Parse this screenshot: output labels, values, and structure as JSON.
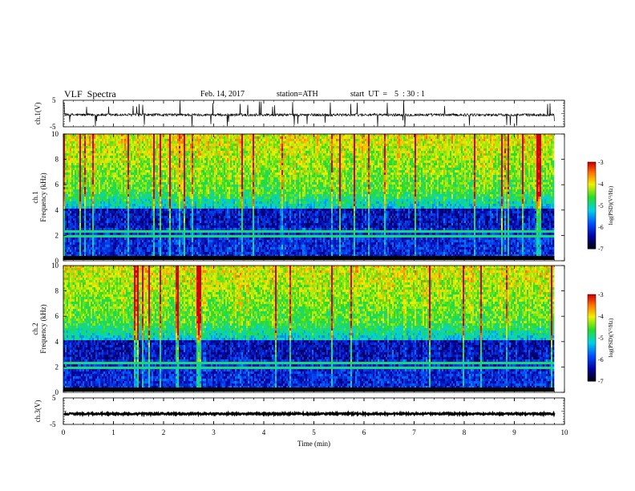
{
  "header": {
    "title": "VLF  Spectra",
    "date": "Feb. 14, 2017",
    "station": "station=ATH",
    "start_label": "start  UT  =",
    "start_time": "5  : 30 : 1"
  },
  "chart_data": [
    {
      "type": "line",
      "panel": "ch1-waveform",
      "ylabel": "ch.1(V)",
      "ylim": [
        -5,
        5
      ],
      "yticks": [
        "5",
        "-5"
      ],
      "xlim": [
        0,
        10
      ],
      "x_extent_min": [
        0,
        9.8
      ],
      "baseline_v": -0.5,
      "noise_amplitude_v": 1.0,
      "spike_max_v": 5
    },
    {
      "type": "heatmap",
      "panel": "ch1-spectrogram",
      "ylabel_top": "ch.1",
      "ylabel": "Frequency  (kHz)",
      "ylim": [
        0,
        10
      ],
      "yticks": [
        "0",
        "2",
        "4",
        "6",
        "8",
        "10"
      ],
      "xlim": [
        0,
        10
      ],
      "x_extent_min": [
        0,
        9.8
      ],
      "colorbar": {
        "label": "log(PSD)(V²/Hz)",
        "range": [
          -7,
          -3
        ],
        "ticks": [
          "-3",
          "-4",
          "-5",
          "-6",
          "-7"
        ]
      }
    },
    {
      "type": "heatmap",
      "panel": "ch2-spectrogram",
      "ylabel_top": "ch.2",
      "ylabel": "Frequency  (kHz)",
      "ylim": [
        0,
        10
      ],
      "yticks": [
        "0",
        "2",
        "4",
        "6",
        "8",
        "10"
      ],
      "xlim": [
        0,
        10
      ],
      "x_extent_min": [
        0,
        9.8
      ],
      "colorbar": {
        "label": "log(PSD)(V²/Hz)",
        "range": [
          -7,
          -3
        ],
        "ticks": [
          "-3",
          "-4",
          "-5",
          "-6",
          "-7"
        ]
      }
    },
    {
      "type": "line",
      "panel": "ch3-waveform",
      "ylabel": "ch.3(V)",
      "ylim": [
        -5,
        5
      ],
      "yticks": [
        "5",
        "-5"
      ],
      "xlim": [
        0,
        10
      ],
      "x_extent_min": [
        0,
        9.8
      ],
      "baseline_v": -1.0,
      "noise_amplitude_v": 0.3
    }
  ],
  "xaxis": {
    "label": "Time  (min)",
    "ticks": [
      "0",
      "1",
      "2",
      "3",
      "4",
      "5",
      "6",
      "7",
      "8",
      "9",
      "10"
    ]
  }
}
